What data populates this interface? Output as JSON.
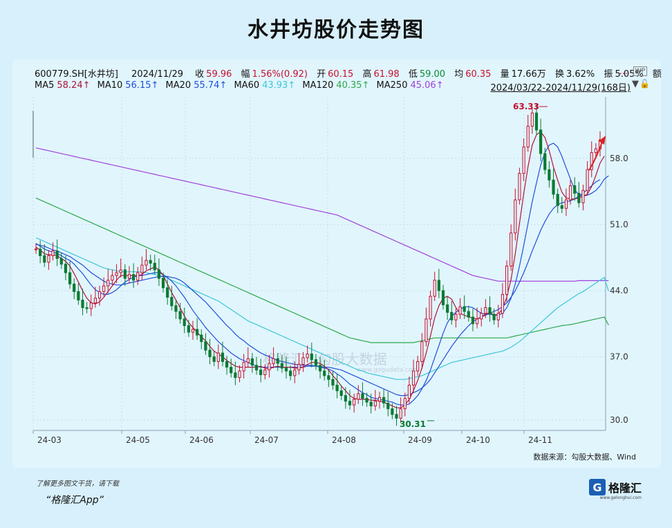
{
  "title": "水井坊股价走势图",
  "info": {
    "code": "600779.SH[水井坊]",
    "date": "2024/11/29",
    "close_label": "收",
    "close": "59.96",
    "change_label": "幅",
    "change": "1.56%(0.92)",
    "open_label": "开",
    "open": "60.15",
    "high_label": "高",
    "high": "61.98",
    "low_label": "低",
    "low": "59.00",
    "avg_label": "均",
    "avg": "60.35",
    "vol_label": "量",
    "vol": "17.66万",
    "turn_label": "换",
    "turn": "3.62%",
    "amp_label": "振",
    "amp": "5.05%",
    "amt_label": "额",
    "dots": "...",
    "wp": "WP"
  },
  "ma": {
    "ma5": "MA5",
    "ma5_v": "58.24↑",
    "ma10": "MA10",
    "ma10_v": "56.15↑",
    "ma20": "MA20",
    "ma20_v": "55.74↑",
    "ma60": "MA60",
    "ma60_v": "43.93↑",
    "ma120": "MA120",
    "ma120_v": "40.35↑",
    "ma250": "MA250",
    "ma250_v": "45.06↑"
  },
  "range": "2024/03/22-2024/11/29(168日)",
  "source": "数据来源：勾股大数据、Wind",
  "footer_note": "了解更多图文干货，请下载",
  "footer_app": "“格隆汇App”",
  "logo_text": "格隆汇",
  "logo_mark": "G",
  "logo_url": "www.gelonghui.com",
  "watermark": "格隆汇 | 勾股大数据",
  "watermark_url": "www.gogudata.com",
  "colors": {
    "up": "#c8102e",
    "down": "#0a7a32",
    "ma5": "#b0123a",
    "ma10": "#1f4fd8",
    "ma20": "#1f4fd8",
    "ma60": "#3cc6d8",
    "ma120": "#2aa84a",
    "ma250": "#a040d8"
  },
  "chart_data": {
    "type": "line",
    "title": "水井坊股价走势图",
    "xlabel": "",
    "ylabel": "",
    "ylim": [
      29.5,
      64.5
    ],
    "y_ticks": [
      "58.0",
      "51.0",
      "44.0",
      "37.0",
      "30.0"
    ],
    "x_tick_labels": [
      "24-03",
      "24-05",
      "24-06",
      "24-07",
      "24-08",
      "24-09",
      "24-10",
      "24-11"
    ],
    "annotations": {
      "high": "63.33",
      "low": "30.31"
    },
    "close": [
      48.4,
      47.7,
      47.0,
      47.7,
      48.2,
      47.4,
      46.8,
      45.9,
      44.7,
      43.9,
      43.0,
      42.2,
      42.1,
      42.7,
      43.2,
      43.9,
      44.5,
      45.1,
      45.6,
      45.9,
      46.2,
      45.3,
      45.7,
      45.1,
      45.9,
      46.7,
      47.2,
      46.9,
      46.2,
      45.3,
      44.3,
      43.3,
      42.4,
      41.8,
      41.0,
      40.3,
      39.6,
      39.9,
      39.3,
      38.6,
      37.7,
      37.0,
      36.5,
      37.4,
      36.5,
      35.9,
      35.3,
      34.8,
      35.5,
      36.4,
      36.8,
      36.1,
      35.6,
      35.1,
      35.6,
      36.3,
      36.8,
      36.3,
      35.8,
      35.5,
      35.0,
      35.6,
      36.2,
      36.9,
      37.3,
      36.7,
      36.1,
      35.5,
      35.0,
      34.6,
      34.0,
      33.4,
      32.9,
      32.3,
      31.9,
      32.5,
      33.1,
      32.6,
      32.2,
      31.8,
      32.3,
      32.7,
      32.1,
      31.5,
      30.9,
      30.5,
      31.5,
      32.6,
      34.0,
      35.5,
      36.5,
      38.6,
      41.0,
      43.4,
      45.1,
      44.0,
      42.5,
      41.7,
      40.9,
      41.5,
      42.3,
      41.8,
      41.2,
      40.5,
      41.0,
      41.6,
      42.2,
      41.5,
      40.9,
      41.6,
      43.6,
      46.6,
      50.1,
      53.6,
      56.4,
      59.2,
      61.4,
      62.8,
      61.0,
      58.5,
      56.8,
      55.7,
      54.2,
      53.0,
      52.7,
      53.6,
      55.1,
      54.3,
      53.3,
      54.6,
      56.8,
      58.6,
      59.0,
      59.96
    ],
    "ma5": [
      48.6,
      48.3,
      47.9,
      47.8,
      47.8,
      47.7,
      47.4,
      47.1,
      46.6,
      45.8,
      44.9,
      44.0,
      43.2,
      42.7,
      42.6,
      42.8,
      43.3,
      43.9,
      44.5,
      45.1,
      45.6,
      45.6,
      45.6,
      45.6,
      45.6,
      45.7,
      46.1,
      46.3,
      46.5,
      46.2,
      45.6,
      44.7,
      43.8,
      43.0,
      42.2,
      41.3,
      40.6,
      40.1,
      39.6,
      39.1,
      38.7,
      38.1,
      37.6,
      37.3,
      37.0,
      36.6,
      36.3,
      36.0,
      35.9,
      35.9,
      35.9,
      35.9,
      35.9,
      36.0,
      35.8,
      35.7,
      35.9,
      36.0,
      35.9,
      35.9,
      35.9,
      35.8,
      35.8,
      35.9,
      36.2,
      36.4,
      36.4,
      36.3,
      36.0,
      35.6,
      35.0,
      34.5,
      33.9,
      33.4,
      32.9,
      32.6,
      32.5,
      32.5,
      32.5,
      32.4,
      32.4,
      32.3,
      32.2,
      32.0,
      31.8,
      31.6,
      31.6,
      31.9,
      32.5,
      33.4,
      34.5,
      35.8,
      37.4,
      39.2,
      41.1,
      42.4,
      43.2,
      43.4,
      43.1,
      42.2,
      41.6,
      41.4,
      41.2,
      41.1,
      41.0,
      41.2,
      41.5,
      41.7,
      41.4,
      41.5,
      42.1,
      43.3,
      45.2,
      47.9,
      51.1,
      54.3,
      57.1,
      59.4,
      60.5,
      60.8,
      60.2,
      58.8,
      57.1,
      55.7,
      54.4,
      53.8,
      53.7,
      53.7,
      53.8,
      54.0,
      54.2,
      55.0,
      56.2,
      57.5,
      58.24
    ],
    "ma10": [
      49.0,
      48.7,
      48.4,
      48.2,
      48.1,
      47.9,
      47.7,
      47.4,
      47.2,
      46.8,
      46.3,
      45.8,
      45.2,
      44.6,
      44.1,
      43.8,
      43.6,
      43.6,
      43.8,
      44.1,
      44.5,
      44.9,
      45.2,
      45.4,
      45.6,
      45.6,
      45.7,
      45.8,
      45.9,
      45.9,
      45.7,
      45.4,
      45.0,
      44.5,
      43.9,
      43.3,
      42.6,
      41.9,
      41.3,
      40.7,
      40.1,
      39.6,
      39.1,
      38.6,
      38.2,
      37.8,
      37.4,
      37.1,
      36.8,
      36.6,
      36.4,
      36.2,
      36.0,
      35.9,
      35.9,
      35.9,
      35.9,
      35.9,
      35.9,
      35.9,
      35.9,
      35.9,
      35.9,
      35.9,
      36.0,
      36.0,
      36.0,
      35.9,
      35.8,
      35.7,
      35.5,
      35.2,
      34.9,
      34.5,
      34.1,
      33.8,
      33.5,
      33.2,
      33.0,
      32.7,
      32.6,
      32.5,
      32.4,
      32.3,
      32.2,
      32.0,
      31.9,
      31.9,
      32.0,
      32.4,
      32.9,
      33.6,
      34.5,
      35.6,
      36.9,
      38.2,
      39.5,
      40.6,
      41.3,
      41.7,
      42.0,
      42.3,
      42.3,
      42.2,
      41.9,
      41.6,
      41.5,
      41.5,
      41.4,
      41.4,
      41.6,
      42.2,
      43.2,
      44.7,
      46.6,
      48.8,
      51.1,
      53.4,
      55.4,
      57.3,
      58.6,
      59.4,
      59.6,
      59.2,
      58.2,
      57.0,
      55.8,
      54.7,
      54.1,
      54.0,
      54.1,
      54.3,
      54.6,
      55.1,
      55.8,
      56.15
    ],
    "ma20": [
      48.9,
      48.8,
      48.7,
      48.5,
      48.3,
      48.2,
      48.0,
      47.8,
      47.6,
      47.3,
      47.0,
      46.7,
      46.3,
      45.9,
      45.6,
      45.3,
      45.0,
      44.8,
      44.7,
      44.6,
      44.6,
      44.7,
      44.8,
      44.9,
      45.0,
      45.1,
      45.2,
      45.3,
      45.4,
      45.5,
      45.5,
      45.5,
      45.4,
      45.3,
      45.1,
      44.8,
      44.4,
      44.0,
      43.6,
      43.2,
      42.8,
      42.3,
      41.8,
      41.3,
      40.8,
      40.3,
      39.9,
      39.4,
      39.0,
      38.7,
      38.3,
      38.0,
      37.7,
      37.4,
      37.2,
      37.0,
      36.8,
      36.6,
      36.5,
      36.4,
      36.3,
      36.2,
      36.1,
      36.1,
      36.1,
      36.1,
      36.0,
      36.0,
      35.9,
      35.9,
      35.8,
      35.7,
      35.6,
      35.4,
      35.2,
      35.0,
      34.8,
      34.6,
      34.4,
      34.2,
      34.0,
      33.8,
      33.6,
      33.4,
      33.2,
      33.0,
      32.9,
      32.9,
      33.0,
      33.2,
      33.4,
      33.7,
      34.1,
      34.6,
      35.3,
      36.0,
      36.7,
      37.4,
      38.1,
      38.7,
      39.3,
      39.8,
      40.3,
      40.7,
      41.0,
      41.2,
      41.4,
      41.6,
      41.8,
      42.0,
      42.3,
      42.7,
      43.3,
      44.0,
      44.9,
      45.9,
      47.0,
      48.2,
      49.3,
      50.4,
      51.3,
      52.1,
      52.7,
      53.1,
      53.3,
      53.4,
      53.5,
      53.7,
      54.0,
      54.3,
      54.7,
      55.1,
      55.5,
      55.74
    ],
    "ma60": [
      49.6,
      49.4,
      49.2,
      49.0,
      48.8,
      48.6,
      48.4,
      48.2,
      48.0,
      47.8,
      47.6,
      47.4,
      47.2,
      47.0,
      46.8,
      46.6,
      46.4,
      46.3,
      46.2,
      46.1,
      46.0,
      46.0,
      46.0,
      46.0,
      46.0,
      46.0,
      45.9,
      45.8,
      45.7,
      45.6,
      45.5,
      45.3,
      45.1,
      44.9,
      44.7,
      44.5,
      44.3,
      44.1,
      43.9,
      43.7,
      43.5,
      43.3,
      43.1,
      42.9,
      42.6,
      42.3,
      42.0,
      41.7,
      41.4,
      41.1,
      40.8,
      40.6,
      40.4,
      40.2,
      40.0,
      39.8,
      39.6,
      39.4,
      39.2,
      39.0,
      38.8,
      38.6,
      38.4,
      38.2,
      38.0,
      37.8,
      37.6,
      37.4,
      37.2,
      37.0,
      36.8,
      36.6,
      36.4,
      36.2,
      36.0,
      35.8,
      35.6,
      35.5,
      35.3,
      35.2,
      35.1,
      35.0,
      34.9,
      34.8,
      34.7,
      34.6,
      34.6,
      34.6,
      34.7,
      34.8,
      34.9,
      35.0,
      35.2,
      35.4,
      35.6,
      35.8,
      36.0,
      36.2,
      36.4,
      36.5,
      36.6,
      36.7,
      36.8,
      36.9,
      37.0,
      37.1,
      37.2,
      37.3,
      37.4,
      37.5,
      37.6,
      37.8,
      38.0,
      38.3,
      38.6,
      39.0,
      39.4,
      39.8,
      40.2,
      40.6,
      41.0,
      41.4,
      41.8,
      42.2,
      42.5,
      42.8,
      43.1,
      43.4,
      43.7,
      43.9,
      44.2,
      44.5,
      44.8,
      45.1,
      45.4,
      43.93
    ],
    "ma120": [
      53.8,
      53.6,
      53.4,
      53.2,
      53.0,
      52.8,
      52.6,
      52.4,
      52.2,
      52.0,
      51.8,
      51.6,
      51.4,
      51.2,
      51.0,
      50.8,
      50.6,
      50.4,
      50.2,
      50.0,
      49.8,
      49.6,
      49.4,
      49.2,
      49.0,
      48.8,
      48.6,
      48.4,
      48.2,
      48.0,
      47.8,
      47.6,
      47.4,
      47.2,
      47.0,
      46.8,
      46.6,
      46.4,
      46.2,
      46.0,
      45.8,
      45.6,
      45.4,
      45.2,
      45.0,
      44.8,
      44.6,
      44.4,
      44.2,
      44.0,
      43.8,
      43.6,
      43.4,
      43.2,
      43.0,
      42.8,
      42.6,
      42.4,
      42.2,
      42.0,
      41.8,
      41.6,
      41.4,
      41.2,
      41.0,
      40.8,
      40.6,
      40.4,
      40.2,
      40.0,
      39.8,
      39.6,
      39.4,
      39.2,
      39.0,
      38.9,
      38.8,
      38.7,
      38.6,
      38.5,
      38.5,
      38.5,
      38.5,
      38.5,
      38.5,
      38.5,
      38.5,
      38.5,
      38.5,
      38.5,
      38.6,
      38.7,
      38.8,
      38.9,
      39.0,
      39.0,
      39.0,
      39.0,
      39.0,
      39.0,
      39.0,
      39.0,
      39.0,
      39.0,
      39.0,
      39.0,
      39.0,
      39.0,
      39.0,
      39.0,
      39.0,
      39.0,
      39.1,
      39.2,
      39.3,
      39.4,
      39.5,
      39.6,
      39.7,
      39.8,
      39.9,
      40.0,
      40.1,
      40.2,
      40.3,
      40.35,
      40.4,
      40.5,
      40.6,
      40.7,
      40.8,
      40.9,
      41.0,
      41.1,
      41.2,
      40.35
    ],
    "ma250": [
      59.1,
      59.0,
      58.9,
      58.8,
      58.7,
      58.6,
      58.5,
      58.4,
      58.3,
      58.2,
      58.1,
      58.0,
      57.9,
      57.8,
      57.7,
      57.6,
      57.5,
      57.4,
      57.3,
      57.2,
      57.1,
      57.0,
      56.9,
      56.8,
      56.7,
      56.6,
      56.5,
      56.4,
      56.3,
      56.2,
      56.1,
      56.0,
      55.9,
      55.8,
      55.7,
      55.6,
      55.5,
      55.4,
      55.3,
      55.2,
      55.1,
      55.0,
      54.9,
      54.8,
      54.7,
      54.6,
      54.5,
      54.4,
      54.3,
      54.2,
      54.1,
      54.0,
      53.9,
      53.8,
      53.7,
      53.6,
      53.5,
      53.4,
      53.3,
      53.2,
      53.1,
      53.0,
      52.9,
      52.8,
      52.7,
      52.6,
      52.5,
      52.4,
      52.3,
      52.2,
      52.1,
      52.0,
      51.8,
      51.6,
      51.4,
      51.2,
      51.0,
      50.8,
      50.6,
      50.4,
      50.2,
      50.0,
      49.8,
      49.6,
      49.4,
      49.2,
      49.0,
      48.8,
      48.6,
      48.4,
      48.2,
      48.0,
      47.8,
      47.6,
      47.4,
      47.2,
      47.0,
      46.8,
      46.6,
      46.4,
      46.2,
      46.0,
      45.8,
      45.6,
      45.5,
      45.4,
      45.3,
      45.2,
      45.1,
      45.0,
      45.0,
      45.0,
      45.0,
      45.0,
      45.0,
      45.0,
      45.0,
      45.0,
      45.0,
      45.0,
      45.0,
      45.0,
      45.0,
      45.0,
      45.0,
      45.0,
      45.0,
      45.0,
      45.06,
      45.06,
      45.06,
      45.06,
      45.06,
      45.06,
      45.06,
      45.06
    ]
  }
}
